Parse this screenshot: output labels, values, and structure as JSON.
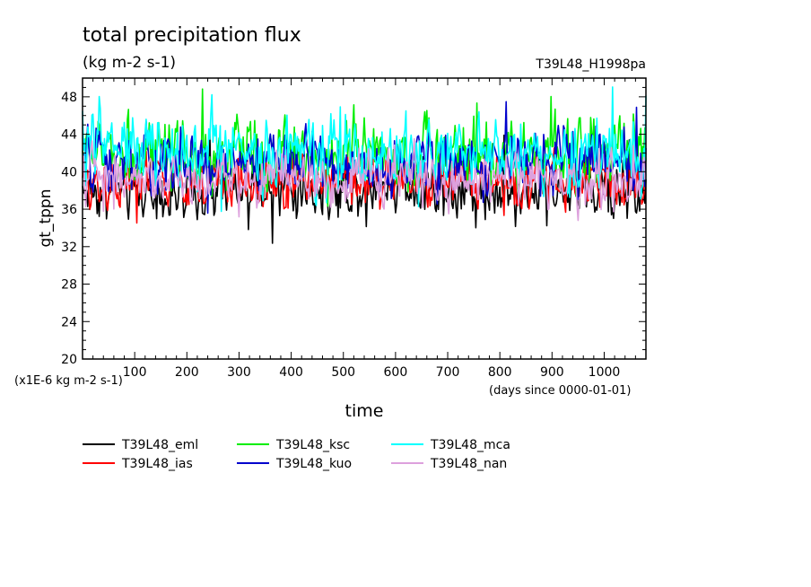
{
  "chart_data": {
    "type": "line",
    "title": "total precipitation flux",
    "subtitle": "(kg m-2 s-1)",
    "run_label": "T39L48_H1998pa",
    "ylabel": "gt_tppn",
    "xlabel": "time",
    "y_unit_note": "(x1E-6 kg m-2 s-1)",
    "x_unit_note": "(days since 0000-01-01)",
    "xlim": [
      0,
      1080
    ],
    "ylim": [
      20,
      50
    ],
    "x_ticks": [
      "100",
      "200",
      "300",
      "400",
      "500",
      "600",
      "700",
      "800",
      "900",
      "1000"
    ],
    "y_ticks": [
      "20",
      "24",
      "28",
      "32",
      "36",
      "40",
      "44",
      "48"
    ],
    "grid": false,
    "legend_position": "bottom",
    "series": [
      {
        "name": "T39L48_eml",
        "color": "#000000",
        "mean": 38.3,
        "spread": 1.9,
        "x": [
          0,
          100,
          200,
          300,
          400,
          500,
          600,
          700,
          800,
          900,
          1000,
          1080
        ],
        "values": [
          38,
          38,
          37,
          38,
          38,
          38,
          39,
          38,
          38,
          38,
          38,
          38
        ]
      },
      {
        "name": "T39L48_ias",
        "color": "#ff0000",
        "mean": 39.2,
        "spread": 1.9,
        "x": [
          0,
          100,
          200,
          300,
          400,
          500,
          600,
          700,
          800,
          900,
          1000,
          1080
        ],
        "values": [
          39,
          39,
          39,
          39,
          39,
          39,
          39,
          39,
          39,
          39,
          39,
          39
        ]
      },
      {
        "name": "T39L48_ksc",
        "color": "#00ee00",
        "mean": 41.6,
        "spread": 2.3,
        "x": [
          0,
          100,
          200,
          300,
          400,
          500,
          600,
          700,
          800,
          900,
          1000,
          1080
        ],
        "values": [
          42,
          42,
          41,
          42,
          42,
          42,
          42,
          42,
          42,
          42,
          42,
          42
        ]
      },
      {
        "name": "T39L48_kuo",
        "color": "#0000cc",
        "mean": 40.8,
        "spread": 2.2,
        "x": [
          0,
          100,
          200,
          300,
          400,
          500,
          600,
          700,
          800,
          900,
          1000,
          1080
        ],
        "values": [
          41,
          41,
          41,
          41,
          41,
          41,
          41,
          41,
          41,
          41,
          41,
          41
        ]
      },
      {
        "name": "T39L48_mca",
        "color": "#00ffff",
        "mean": 42.2,
        "spread": 2.5,
        "x": [
          0,
          100,
          200,
          300,
          400,
          500,
          600,
          700,
          800,
          900,
          1000,
          1080
        ],
        "values": [
          42,
          43,
          42,
          42,
          42,
          42,
          42,
          42,
          42,
          42,
          42,
          42
        ]
      },
      {
        "name": "T39L48_nan",
        "color": "#dda0dd",
        "mean": 39.5,
        "spread": 1.7,
        "x": [
          0,
          100,
          200,
          300,
          400,
          500,
          600,
          700,
          800,
          900,
          1000,
          1080
        ],
        "values": [
          40,
          39,
          39,
          40,
          39,
          39,
          40,
          39,
          39,
          39,
          39,
          39
        ]
      }
    ]
  }
}
